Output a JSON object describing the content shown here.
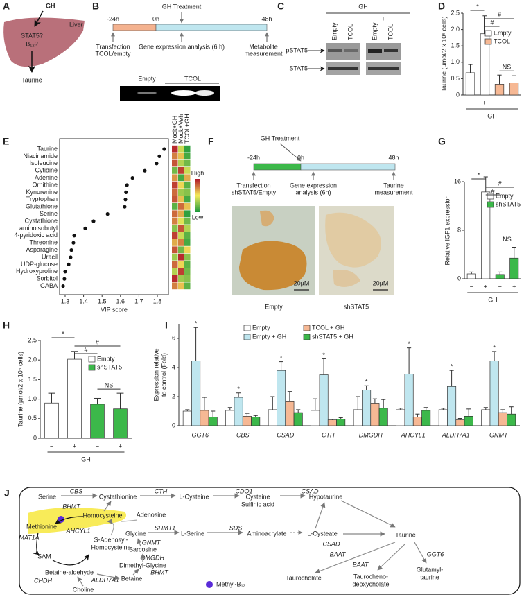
{
  "panel_labels": [
    "A",
    "B",
    "C",
    "D",
    "E",
    "F",
    "G",
    "H",
    "I",
    "J"
  ],
  "panel_a": {
    "hormone": "GH",
    "organ": "Liver",
    "questions": [
      "STAT5?",
      "B₁₂?"
    ],
    "product": "Taurine"
  },
  "panel_b": {
    "treatment": "GH Treatment",
    "timepoints": [
      "-24h",
      "0h",
      "48h"
    ],
    "steps": [
      [
        "Transfection",
        "TCOL/empty"
      ],
      [
        "Gene expression analysis (6 h)"
      ],
      [
        "Metabolite",
        "measurement"
      ]
    ],
    "gel_lanes": [
      "Empty",
      "TCOL"
    ]
  },
  "panel_c": {
    "treatment": "GH",
    "conditions": [
      "−",
      "+"
    ],
    "lanes": [
      "Empty",
      "TCOL",
      "Empty",
      "TCOL"
    ],
    "bands": [
      "pSTAT5",
      "STAT5"
    ]
  },
  "panel_f": {
    "treatment": "GH Treatment",
    "timepoints": [
      "-24h",
      "0h",
      "48h"
    ],
    "steps": [
      [
        "Transfection",
        "shSTAT5/Empty"
      ],
      [
        "Gene expression",
        "analysis (6h)"
      ],
      [
        "Taurine",
        "measurement"
      ]
    ],
    "scale_bars": [
      "20µM",
      "20µM"
    ],
    "captions": [
      "Empty",
      "shSTAT5"
    ]
  },
  "panel_j": {
    "nodes": [
      {
        "lines": [
          "Serine"
        ],
        "color": "#222"
      },
      {
        "lines": [
          "Cystathionine"
        ],
        "color": "#222"
      },
      {
        "lines": [
          "L-Cysteine"
        ],
        "color": "#777"
      },
      {
        "lines": [
          "Cysteine",
          "Sulfinic acid"
        ],
        "color": "#777"
      },
      {
        "lines": [
          "Hypotaurine"
        ],
        "color": "#777"
      },
      {
        "lines": [
          "Homocysteine"
        ],
        "color": "#6fbf2a"
      },
      {
        "lines": [
          "Adenosine"
        ],
        "color": "#e0201b"
      },
      {
        "lines": [
          "Methionine"
        ],
        "color": "#222"
      },
      {
        "lines": [
          "S-Adenosyl-",
          "Homocysteine"
        ],
        "color": "#777"
      },
      {
        "lines": [
          "SAM"
        ],
        "color": "#777"
      },
      {
        "lines": [
          "Glycine"
        ],
        "color": "#222"
      },
      {
        "lines": [
          "L-Serine"
        ],
        "color": "#222"
      },
      {
        "lines": [
          "Aminoacrylate"
        ],
        "color": "#777"
      },
      {
        "lines": [
          "L-Cysteate"
        ],
        "color": "#777"
      },
      {
        "lines": [
          "Taurine"
        ],
        "color": "#e0201b"
      },
      {
        "lines": [
          "Sarcosine"
        ],
        "color": "#777"
      },
      {
        "lines": [
          "Dimethyl-Glycine"
        ],
        "color": "#e0201b"
      },
      {
        "lines": [
          "Betaine"
        ],
        "color": "#222"
      },
      {
        "lines": [
          "Betaine-aldehyde"
        ],
        "color": "#777"
      },
      {
        "lines": [
          "Choline"
        ],
        "color": "#222"
      },
      {
        "lines": [
          "Taurocholate"
        ],
        "color": "#777"
      },
      {
        "lines": [
          "Taurocheno-",
          "deoxycholate"
        ],
        "color": "#222"
      },
      {
        "lines": [
          "Glutamyl-",
          "taurine"
        ],
        "color": "#777"
      }
    ],
    "enzymes": [
      {
        "label": "CBS",
        "color": "#e0201b"
      },
      {
        "label": "CTH",
        "color": "#e0201b"
      },
      {
        "label": "CDO1",
        "color": "#777"
      },
      {
        "label": "CSAD",
        "color": "#e0201b"
      },
      {
        "label": "BHMT",
        "color": "#222"
      },
      {
        "label": "MAT1A",
        "color": "#222"
      },
      {
        "label": "AHCYL1",
        "color": "#e0201b"
      },
      {
        "label": "SHMT1",
        "color": "#222"
      },
      {
        "label": "SDS",
        "color": "#777"
      },
      {
        "label": "CSAD",
        "color": "#e0201b"
      },
      {
        "label": "GNMT",
        "color": "#e0201b"
      },
      {
        "label": "DMGDH",
        "color": "#e0201b"
      },
      {
        "label": "BHMT",
        "color": "#222"
      },
      {
        "label": "ALDH7A1",
        "color": "#e0201b"
      },
      {
        "label": "CHDH",
        "color": "#777"
      },
      {
        "label": "BAAT",
        "color": "#222"
      },
      {
        "label": "BAAT",
        "color": "#222"
      },
      {
        "label": "GGT6",
        "color": "#e0201b"
      }
    ],
    "legend": "Methyl-B₁₂"
  },
  "chart_data": [
    {
      "type": "bar",
      "y_label": "Taurine (µmol/2 x 10⁶ cells)",
      "x_label": "GH",
      "categories": [
        "−",
        "+",
        "−",
        "+"
      ],
      "series": [
        {
          "name": "Empty",
          "color": "#ffffff",
          "values": [
            0.68,
            1.87,
            null,
            null
          ],
          "errors": [
            0.25,
            0.55,
            null,
            null
          ]
        },
        {
          "name": "TCOL",
          "color": "#f6b894",
          "values": [
            null,
            null,
            0.33,
            0.37
          ],
          "errors": [
            null,
            null,
            0.28,
            0.22
          ]
        }
      ],
      "ylim": [
        0,
        2.5
      ],
      "yticks": [
        0,
        0.5,
        {
          "value": 1,
          "label": "1.0"
        },
        1.5,
        {
          "value": 2,
          "label": "2.0"
        },
        2.5
      ],
      "annotations": [
        "*",
        "#",
        "#",
        "NS"
      ]
    },
    {
      "type": "scatter",
      "x_label": "VIP score",
      "categories": [
        "Taurine",
        "Niacinamide",
        "Isoleucine",
        "Cytidine",
        "Adenine",
        "Ornithine",
        "Kynurenine",
        "Tryptophan",
        "Glutathione",
        "Serine",
        "Cystathione",
        "aminoisobutyl",
        "4-pyridoxic acid",
        "Threonine",
        "Asparagine",
        "Uracil",
        "UDP-glucose",
        "Hydroxyproline",
        "Sorbitol",
        "GABA"
      ],
      "values": [
        1.837,
        1.811,
        1.796,
        1.732,
        1.665,
        1.635,
        1.63,
        1.627,
        1.623,
        1.53,
        1.454,
        1.409,
        1.349,
        1.345,
        1.334,
        1.33,
        1.319,
        1.3,
        1.296,
        1.289
      ],
      "color": "#111",
      "label_colors": [
        "#e0201b",
        "#222",
        "#222",
        "#222",
        "#222",
        "#222",
        "#222",
        "#222",
        "#222",
        "#222",
        "#222",
        "#222",
        "#222",
        "#222",
        "#222",
        "#222",
        "#222",
        "#222",
        "#222",
        "#222"
      ],
      "xlim": [
        1.27,
        1.86
      ],
      "xticks": [
        1.3,
        1.4,
        1.5,
        1.6,
        1.7,
        1.8
      ],
      "heatmap": {
        "columns": [
          "Mock+GH",
          "Mock+Veh",
          "TCOL+GH"
        ],
        "legend": [
          "High",
          "Low"
        ],
        "values": [
          [
            0.9,
            -0.2,
            -0.9
          ],
          [
            0.5,
            0.2,
            -0.8
          ],
          [
            0.7,
            -0.3,
            -0.6
          ],
          [
            -0.6,
            0.8,
            -0.2
          ],
          [
            0.4,
            -0.8,
            0.3
          ],
          [
            0.8,
            0.1,
            -0.7
          ],
          [
            0.6,
            -0.4,
            -0.5
          ],
          [
            0.7,
            0.2,
            -0.8
          ],
          [
            -0.7,
            0.6,
            0.2
          ],
          [
            0.6,
            0.3,
            -0.9
          ],
          [
            0.5,
            -0.1,
            -0.6
          ],
          [
            -0.5,
            0.7,
            -0.3
          ],
          [
            0.8,
            -0.2,
            -0.7
          ],
          [
            0.3,
            0.5,
            -0.8
          ],
          [
            0.7,
            -0.6,
            0.1
          ],
          [
            -0.4,
            0.9,
            -0.5
          ],
          [
            0.6,
            0.1,
            -0.7
          ],
          [
            -0.3,
            0.8,
            -0.6
          ],
          [
            0.9,
            -0.4,
            -0.5
          ],
          [
            0.5,
            0.2,
            -0.7
          ]
        ]
      }
    },
    {
      "type": "bar",
      "y_label": "Relative IGF1 expression",
      "x_label": "GH",
      "categories": [
        "−",
        "+",
        "−",
        "+"
      ],
      "series": [
        {
          "name": "Empty",
          "color": "#ffffff",
          "values": [
            0.8,
            14.3,
            null,
            null
          ],
          "errors": [
            0.3,
            2.5,
            null,
            null
          ]
        },
        {
          "name": "shSTAT5",
          "color": "#3cb84a",
          "values": [
            null,
            null,
            0.7,
            3.4
          ],
          "errors": [
            null,
            null,
            0.4,
            1.8
          ]
        }
      ],
      "ylim": [
        0,
        16
      ],
      "yticks": [
        0,
        8,
        16
      ],
      "annotations": [
        "*",
        "#",
        "#",
        "NS"
      ]
    },
    {
      "type": "bar",
      "y_label": "Taurine (µmol/2 x 10⁶ cells)",
      "x_label": "GH",
      "categories": [
        "−",
        "+",
        "−",
        "+"
      ],
      "series": [
        {
          "name": "Empty",
          "color": "#ffffff",
          "values": [
            0.9,
            2.02,
            null,
            null
          ],
          "errors": [
            0.25,
            0.2,
            null,
            null
          ]
        },
        {
          "name": "shSTAT5",
          "color": "#3cb84a",
          "values": [
            null,
            null,
            0.87,
            0.75
          ],
          "errors": [
            null,
            null,
            0.15,
            0.4
          ]
        }
      ],
      "ylim": [
        0,
        2.5
      ],
      "yticks": [
        0,
        0.5,
        {
          "value": 1,
          "label": "1.0"
        },
        1.5,
        {
          "value": 2,
          "label": "2.0"
        },
        2.5
      ],
      "annotations": [
        "*",
        "#",
        "#",
        "NS"
      ]
    },
    {
      "type": "bar",
      "y_label": [
        "Expression relative",
        "to control (Fold)"
      ],
      "categories": [
        "GGT6",
        "CBS",
        "CSAD",
        "CTH",
        "DMGDH",
        "AHCYL1",
        "ALDH7A1",
        "GNMT"
      ],
      "series": [
        {
          "name": "Empty",
          "color": "#ffffff",
          "values": [
            1.0,
            1.05,
            1.1,
            1.05,
            1.1,
            1.1,
            1.1,
            1.1
          ],
          "errors": [
            0.1,
            0.2,
            0.9,
            0.8,
            0.9,
            0.1,
            0.1,
            0.15
          ]
        },
        {
          "name": "Empty + GH",
          "color": "#bfe6ef",
          "values": [
            4.45,
            1.95,
            3.8,
            3.5,
            2.45,
            3.55,
            2.7,
            4.45
          ],
          "errors": [
            2.3,
            0.3,
            0.6,
            1.1,
            0.3,
            1.8,
            1.1,
            0.65
          ]
        },
        {
          "name": "TCOL + GH",
          "color": "#f6b894",
          "values": [
            1.05,
            0.65,
            1.65,
            0.4,
            1.55,
            0.6,
            0.4,
            0.9
          ],
          "errors": [
            0.9,
            0.2,
            0.7,
            0.05,
            0.3,
            0.2,
            0.1,
            0.2
          ]
        },
        {
          "name": "shSTAT5 + GH",
          "color": "#3cb84a",
          "values": [
            0.6,
            0.6,
            0.9,
            0.45,
            1.2,
            1.05,
            0.65,
            0.8
          ],
          "errors": [
            0.4,
            0.1,
            0.2,
            0.1,
            0.6,
            0.2,
            0.5,
            0.5
          ]
        }
      ],
      "ylim": [
        0,
        7
      ],
      "yticks": [
        0,
        2,
        4,
        6
      ],
      "annotations": [
        "*",
        "*",
        "*",
        "*",
        "*",
        "*",
        "*",
        "*"
      ]
    }
  ]
}
